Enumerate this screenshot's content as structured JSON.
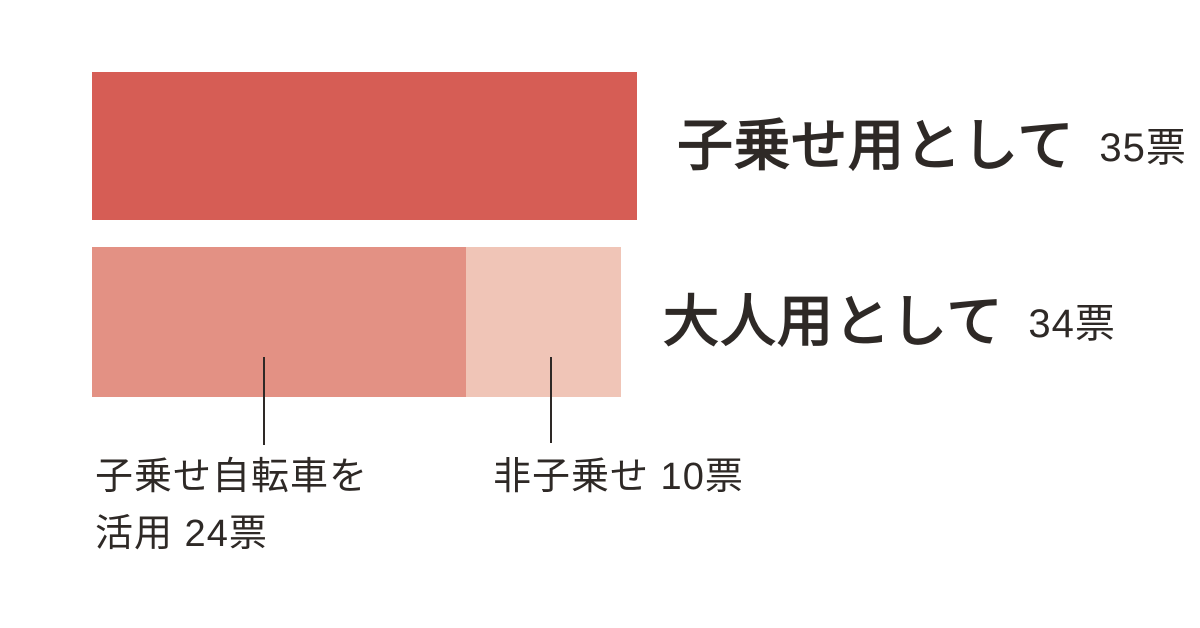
{
  "chart_data": {
    "type": "bar",
    "orientation": "horizontal-stacked",
    "unit": "票",
    "xlim": [
      0,
      35
    ],
    "grid": false,
    "legend": "none",
    "bars": [
      {
        "label": "子乗せ用として",
        "count_label": "35票",
        "total": 35,
        "segments": [
          {
            "name": "子乗せ用として",
            "value": 35,
            "color": "#d65d55"
          }
        ]
      },
      {
        "label": "大人用として",
        "count_label": "34票",
        "total": 34,
        "segments": [
          {
            "name": "子乗せ自転車を活用",
            "value": 24,
            "color": "#e39184"
          },
          {
            "name": "非子乗せ",
            "value": 10,
            "color": "#f0c5b7"
          }
        ]
      }
    ],
    "annotations": [
      {
        "target": "子乗せ自転車を活用",
        "value": 24,
        "lines": [
          "子乗せ自転車を",
          "活用 24票"
        ]
      },
      {
        "target": "非子乗せ",
        "value": 10,
        "lines": [
          "非子乗せ 10票"
        ]
      }
    ],
    "colors": {
      "background": "#ffffff",
      "text": "#2e2926",
      "leader_line": "#2e2926"
    }
  }
}
